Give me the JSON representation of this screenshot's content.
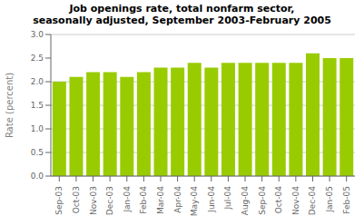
{
  "chart_data": {
    "type": "bar",
    "title": "Job openings rate, total nonfarm sector,\nseasonally adjusted, September 2003-February 2005",
    "categories": [
      "Sep-03",
      "Oct-03",
      "Nov-03",
      "Dec-03",
      "Jan-04",
      "Feb-04",
      "Mar-04",
      "Apr-04",
      "May-04",
      "Jun-04",
      "Jul-04",
      "Aug-04",
      "Sep-04",
      "Oct-04",
      "Nov-04",
      "Dec-04",
      "Jan-05",
      "Feb-05"
    ],
    "values": [
      2.0,
      2.1,
      2.2,
      2.2,
      2.1,
      2.2,
      2.3,
      2.3,
      2.4,
      2.3,
      2.4,
      2.4,
      2.4,
      2.4,
      2.4,
      2.6,
      2.5,
      2.5
    ],
    "color": "#99cc00",
    "y_label": "Rate (percent)",
    "ylim": [
      0.0,
      3.0
    ],
    "yticks": [
      {
        "value": 0,
        "label": "0.0"
      },
      0.5,
      {
        "value": 1,
        "label": "1.0"
      },
      1.5,
      {
        "value": 2,
        "label": "2.0"
      },
      2.5,
      {
        "value": 3,
        "label": "3.0"
      }
    ],
    "grid": true
  }
}
